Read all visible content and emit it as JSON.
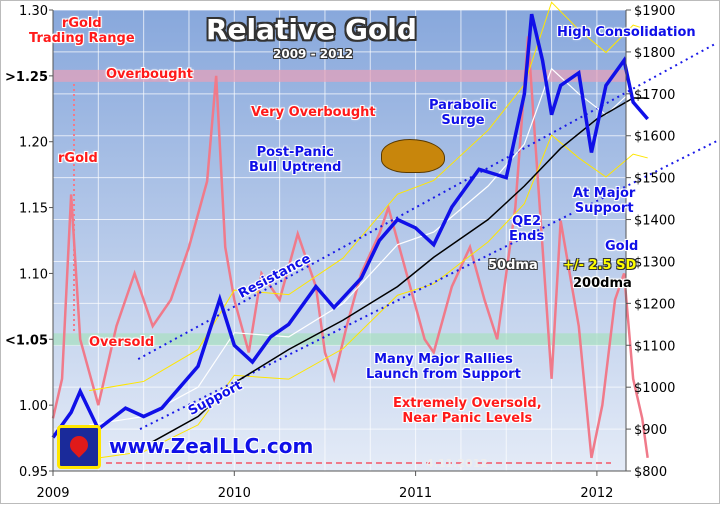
{
  "chart_data": {
    "type": "line",
    "title": "Relative Gold",
    "subtitle": "2009 - 2012",
    "x_ticks": [
      "2009",
      "2010",
      "2011",
      "2012"
    ],
    "xlim": [
      2009.0,
      2012.35
    ],
    "left_axis": {
      "ylim": [
        0.95,
        1.3
      ],
      "ticks": [
        "1.30",
        ">1.25",
        "1.20",
        "1.15",
        "1.10",
        "<1.05",
        "1.00",
        "0.95"
      ],
      "tick_values": [
        1.3,
        1.25,
        1.2,
        1.15,
        1.1,
        1.05,
        1.0,
        0.95
      ]
    },
    "right_axis": {
      "ylim": [
        800,
        1900
      ],
      "ticks": [
        "$1900",
        "$1800",
        "$1700",
        "$1600",
        "$1500",
        "$1400",
        "$1300",
        "$1200",
        "$1100",
        "$1000",
        "$900",
        "$800"
      ],
      "tick_values": [
        1900,
        1800,
        1700,
        1600,
        1500,
        1400,
        1300,
        1200,
        1100,
        1000,
        900,
        800
      ]
    },
    "grid": true,
    "bands": [
      {
        "level": 1.25,
        "label": "Overbought",
        "color": "#e8a0b8"
      },
      {
        "level": 1.05,
        "label": "Oversold",
        "color": "#a8e0c0"
      }
    ],
    "series": [
      {
        "name": "rGold",
        "axis": "left",
        "color": "#f07a8a",
        "x": [
          2009.0,
          2009.05,
          2009.1,
          2009.15,
          2009.25,
          2009.35,
          2009.45,
          2009.55,
          2009.65,
          2009.75,
          2009.85,
          2009.9,
          2009.95,
          2010.0,
          2010.08,
          2010.15,
          2010.25,
          2010.35,
          2010.45,
          2010.5,
          2010.55,
          2010.62,
          2010.7,
          2010.8,
          2010.85,
          2010.95,
          2011.05,
          2011.1,
          2011.2,
          2011.3,
          2011.38,
          2011.45,
          2011.55,
          2011.62,
          2011.65,
          2011.7,
          2011.75,
          2011.8,
          2011.85,
          2011.9,
          2011.97,
          2012.03,
          2012.1,
          2012.15,
          2012.2,
          2012.25,
          2012.28
        ],
        "y": [
          0.99,
          1.02,
          1.16,
          1.05,
          1.0,
          1.06,
          1.1,
          1.06,
          1.08,
          1.12,
          1.17,
          1.25,
          1.12,
          1.08,
          1.04,
          1.1,
          1.08,
          1.13,
          1.09,
          1.04,
          1.02,
          1.06,
          1.1,
          1.13,
          1.15,
          1.1,
          1.05,
          1.04,
          1.09,
          1.12,
          1.08,
          1.05,
          1.15,
          1.28,
          1.22,
          1.12,
          1.02,
          1.14,
          1.1,
          1.06,
          0.96,
          1.0,
          1.08,
          1.1,
          1.02,
          0.99,
          0.96
        ]
      },
      {
        "name": "Gold",
        "axis": "right",
        "color": "#1010e8",
        "x": [
          2009.0,
          2009.1,
          2009.15,
          2009.25,
          2009.4,
          2009.5,
          2009.6,
          2009.7,
          2009.8,
          2009.92,
          2010.0,
          2010.1,
          2010.2,
          2010.3,
          2010.45,
          2010.55,
          2010.7,
          2010.8,
          2010.9,
          2011.0,
          2011.1,
          2011.2,
          2011.35,
          2011.5,
          2011.6,
          2011.64,
          2011.7,
          2011.75,
          2011.8,
          2011.9,
          2011.97,
          2012.05,
          2012.15,
          2012.2,
          2012.28
        ],
        "y": [
          880,
          940,
          990,
          900,
          950,
          930,
          950,
          1000,
          1050,
          1210,
          1100,
          1060,
          1120,
          1150,
          1240,
          1190,
          1260,
          1350,
          1400,
          1380,
          1340,
          1430,
          1520,
          1500,
          1700,
          1890,
          1780,
          1650,
          1720,
          1750,
          1560,
          1720,
          1780,
          1680,
          1640
        ]
      },
      {
        "name": "50dma",
        "axis": "right",
        "color": "#ffffff",
        "x": [
          2009.2,
          2009.5,
          2009.8,
          2010.0,
          2010.3,
          2010.6,
          2010.9,
          2011.1,
          2011.4,
          2011.6,
          2011.75,
          2011.9,
          2012.05,
          2012.2,
          2012.28
        ],
        "y": [
          910,
          930,
          1000,
          1130,
          1120,
          1200,
          1340,
          1370,
          1480,
          1580,
          1760,
          1700,
          1650,
          1710,
          1700
        ]
      },
      {
        "name": "200dma",
        "axis": "right",
        "color": "#000000",
        "x": [
          2009.55,
          2009.8,
          2010.0,
          2010.3,
          2010.6,
          2010.9,
          2011.1,
          2011.4,
          2011.6,
          2011.8,
          2012.0,
          2012.2,
          2012.28
        ],
        "y": [
          870,
          930,
          1010,
          1090,
          1160,
          1240,
          1310,
          1400,
          1480,
          1570,
          1640,
          1690,
          1690
        ]
      }
    ],
    "channel": [
      {
        "label": "Resistance",
        "x": [
          2009.47,
          2012.66
        ],
        "y": [
          1067,
          1821
        ]
      },
      {
        "label": "Support",
        "x": [
          2009.48,
          2012.66
        ],
        "y": [
          900,
          1587
        ]
      }
    ],
    "annotations": {
      "rgold_range": "rGold\nTrading Range",
      "overbought": "Overbought",
      "rgold": "rGold",
      "oversold": "Oversold",
      "very_overbought": "Very Overbought",
      "post_panic": "Post-Panic\nBull Uptrend",
      "parabolic": "Parabolic\nSurge",
      "high_consolidation": "High Consolidation",
      "at_major_support": "At Major\nSupport",
      "qe2": "QE2\nEnds",
      "gold": "Gold",
      "dma50": "50dma",
      "sd": "+/- 2.5 SD",
      "dma200": "200dma",
      "resistance": "Resistance",
      "support": "Support",
      "many_rallies": "Many Major Rallies\nLaunch from Support",
      "extremely_oversold": "Extremely Oversold,\nNear Panic Levels",
      "date": "4.11.2012",
      "website": "www.ZealLLC.com"
    }
  }
}
